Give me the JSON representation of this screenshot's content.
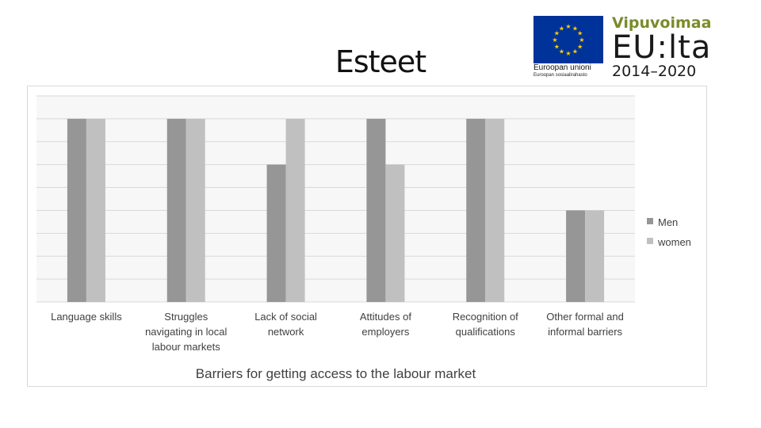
{
  "slide": {
    "title": "Esteet"
  },
  "logos": {
    "eu_caption": "Euroopan unioni",
    "eu_subcaption": "Euroopan sosiaalirahasto",
    "vipu_brand": "Vipuvoimaa",
    "vipu_main": "EU:lta",
    "vipu_years": "2014–2020"
  },
  "colors": {
    "men": "#969696",
    "women": "#c0c0c0",
    "grid": "#d9d9d9"
  },
  "chart_data": {
    "type": "bar",
    "title": "",
    "xlabel": "Barriers for getting access to the labour market",
    "ylabel": "",
    "ylim": [
      0,
      8
    ],
    "grid": true,
    "legend_position": "right",
    "categories": [
      [
        "Language skills"
      ],
      [
        "Struggles",
        "navigating in local",
        "labour markets"
      ],
      [
        "Lack of social",
        "network"
      ],
      [
        "Attitudes of",
        "employers"
      ],
      [
        "Recognition of",
        "qualifications"
      ],
      [
        "Other formal and",
        "informal barriers"
      ]
    ],
    "series": [
      {
        "name": "Men",
        "values": [
          8,
          8,
          6,
          8,
          8,
          4
        ]
      },
      {
        "name": "women",
        "values": [
          8,
          8,
          8,
          6,
          8,
          4
        ]
      }
    ]
  }
}
